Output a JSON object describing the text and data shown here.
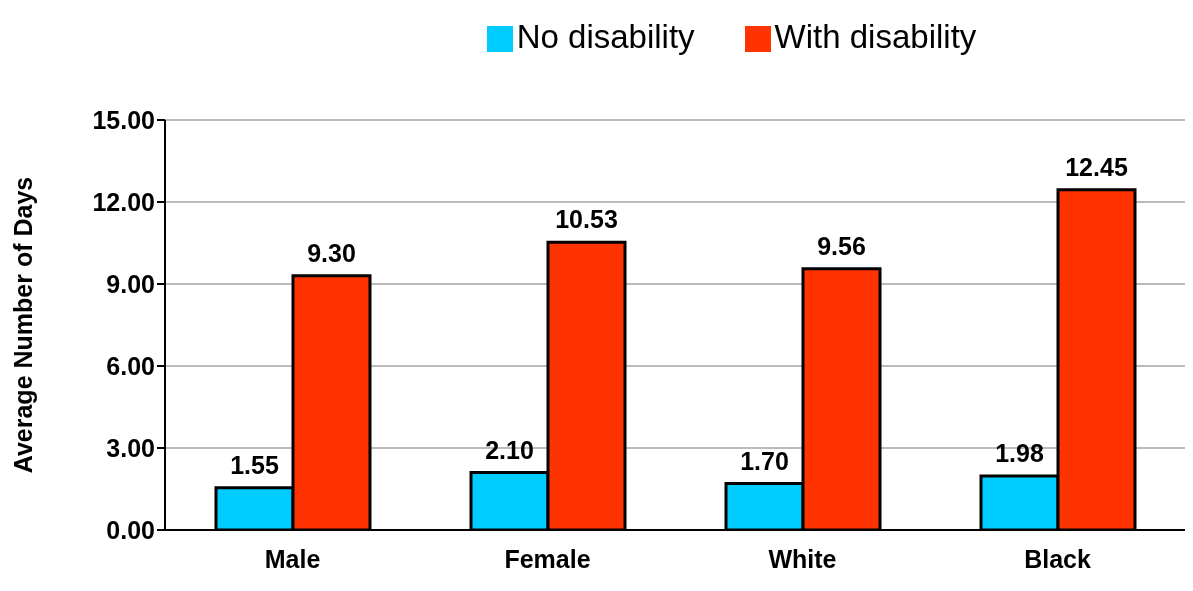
{
  "chart_data": {
    "type": "bar",
    "ylabel": "Average Number of Days",
    "categories": [
      "Male",
      "Female",
      "White",
      "Black"
    ],
    "series": [
      {
        "name": "No disability",
        "color": "#00ccff",
        "values": [
          1.55,
          2.1,
          1.7,
          1.98
        ],
        "value_labels": [
          "1.55",
          "2.10",
          "1.70",
          "1.98"
        ]
      },
      {
        "name": "With disability",
        "color": "#ff3300",
        "values": [
          9.3,
          10.53,
          9.56,
          12.45
        ],
        "value_labels": [
          "9.30",
          "10.53",
          "9.56",
          "12.45"
        ]
      }
    ],
    "ylim": [
      0,
      15
    ],
    "yticks": [
      {
        "value": 0,
        "label": "0.00"
      },
      {
        "value": 3,
        "label": "3.00"
      },
      {
        "value": 6,
        "label": "6.00"
      },
      {
        "value": 9,
        "label": "9.00"
      },
      {
        "value": 12,
        "label": "12.00"
      },
      {
        "value": 15,
        "label": "15.00"
      }
    ],
    "grid": "y",
    "legend": "top"
  }
}
